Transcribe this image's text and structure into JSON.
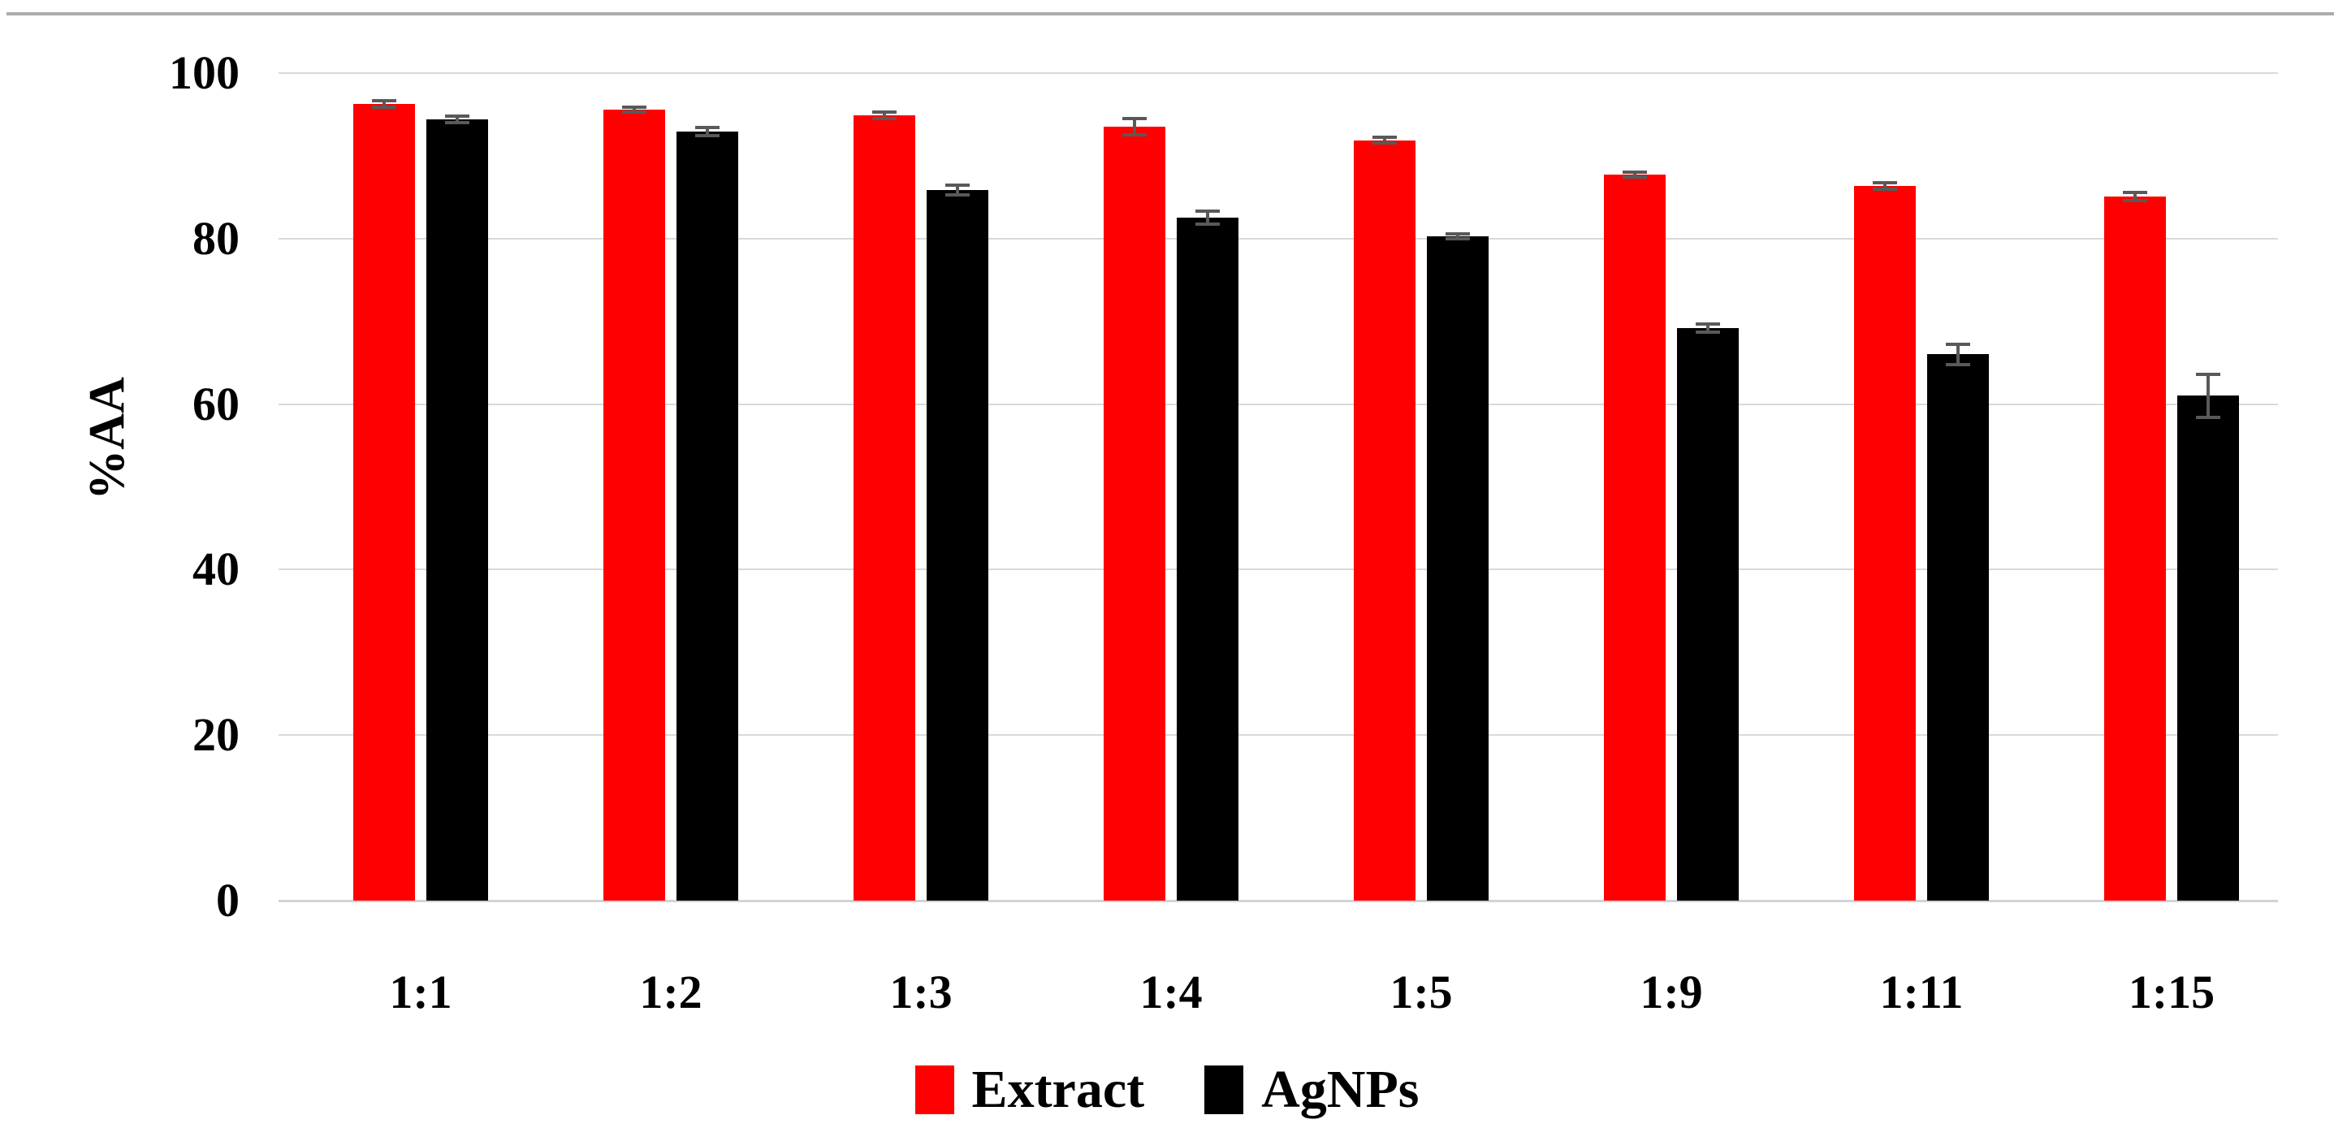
{
  "figure": {
    "background": "#ffffff",
    "top_border_color": "#acacac"
  },
  "chart_data": {
    "type": "bar",
    "title": "",
    "categories": [
      "1:1",
      "1:2",
      "1:3",
      "1:4",
      "1:5",
      "1:9",
      "1:11",
      "1:15"
    ],
    "series": [
      {
        "name": "Extract",
        "color": "#ff0000",
        "values": [
          96.3,
          95.6,
          94.9,
          93.5,
          91.9,
          87.7,
          86.4,
          85.1
        ],
        "errors": [
          0.4,
          0.3,
          0.4,
          1.0,
          0.3,
          0.3,
          0.4,
          0.5
        ]
      },
      {
        "name": "AgNPs",
        "color": "#000000",
        "values": [
          94.4,
          92.9,
          85.9,
          82.5,
          80.3,
          69.2,
          66.0,
          61.0
        ],
        "errors": [
          0.4,
          0.5,
          0.6,
          0.8,
          0.3,
          0.5,
          1.2,
          2.6
        ]
      }
    ],
    "xlabel": "",
    "ylabel": "%AA",
    "ylim": [
      0,
      100
    ],
    "ytick_interval": 20,
    "yticks": [
      "0",
      "20",
      "40",
      "60",
      "80",
      "100"
    ],
    "grid": true,
    "gridline_color": "#d9d9d9",
    "error_bar_color": "#595959",
    "legend_position": "bottom"
  }
}
